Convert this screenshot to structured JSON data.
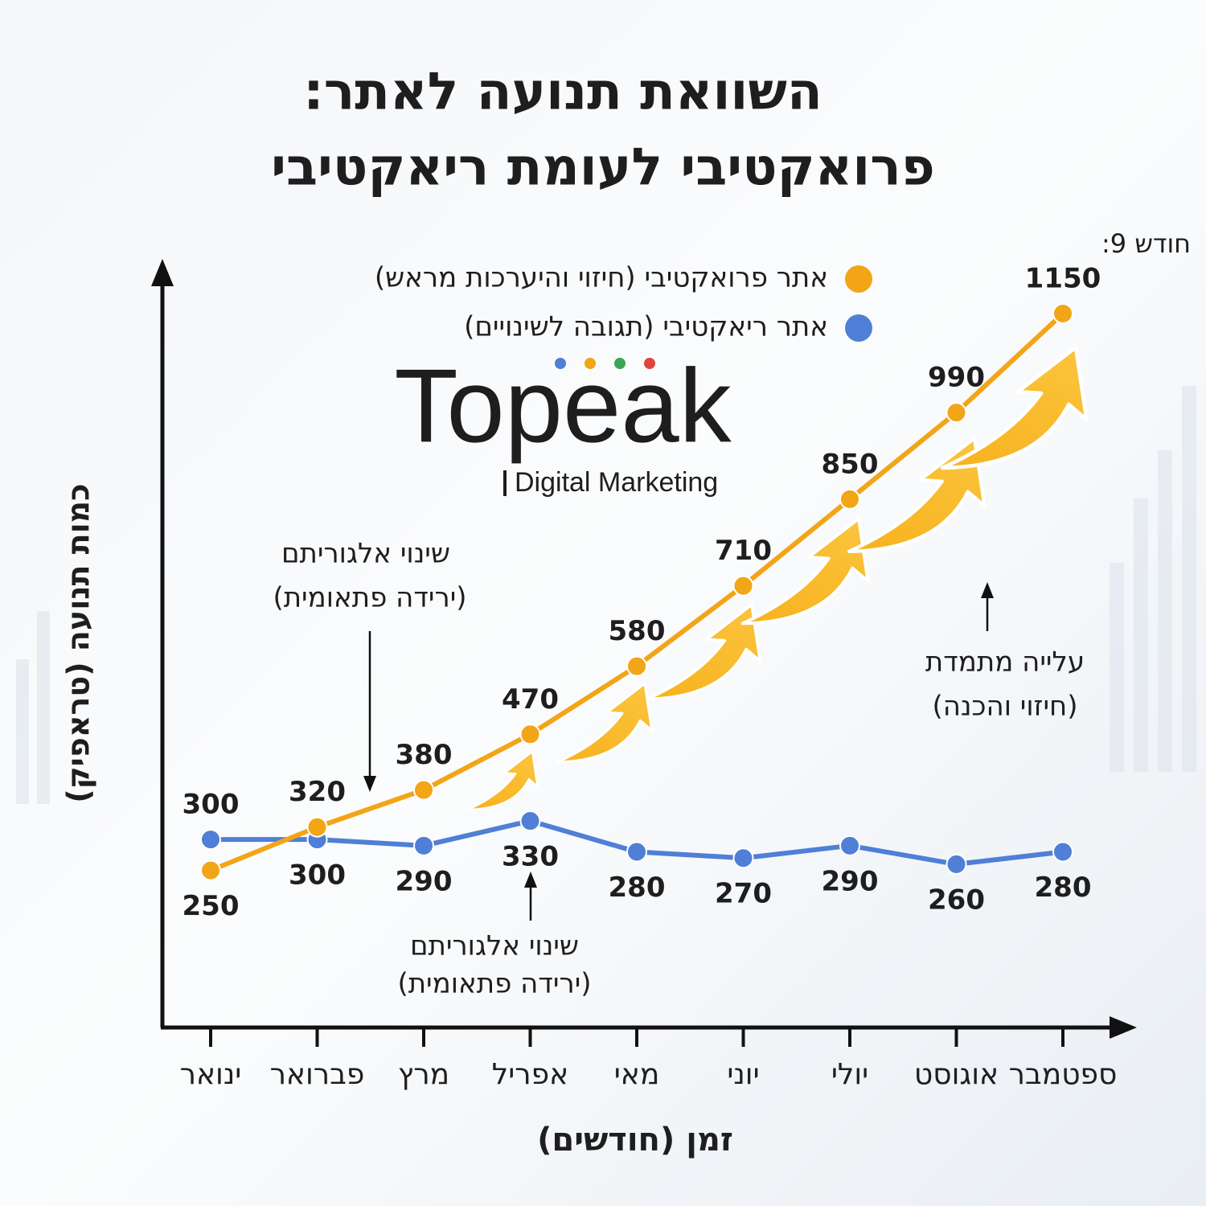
{
  "chart_data": {
    "type": "line",
    "title": [
      "השוואת תנועה לאתר:",
      "פרואקטיבי לעומת ריאקטיבי"
    ],
    "x_label": "זמן (חודשים)",
    "y_label": "כמות תנועה (טראפיק)",
    "categories": [
      "ינואר",
      "פברואר",
      "מרץ",
      "אפריל",
      "מאי",
      "יוני",
      "יולי",
      "אוגוסט",
      "ספטמבר"
    ],
    "series": [
      {
        "name": "אתר פרואקטיבי (חיזוי והיערכות מראש)",
        "color": "#f2a516",
        "values": [
          250,
          320,
          380,
          470,
          580,
          710,
          850,
          990,
          1150
        ]
      },
      {
        "name": "אתר ריאקטיבי (תגובה לשינויים)",
        "color": "#4f7fd6",
        "values": [
          300,
          300,
          290,
          330,
          280,
          270,
          290,
          260,
          280
        ]
      }
    ],
    "peak_note": "חודש 9:",
    "annotations": [
      {
        "text": "שינוי אלגוריתם",
        "sub": "(ירידה פתאומית)"
      },
      {
        "text": "שינוי אלגוריתם",
        "sub": "(ירידה פתאומית)"
      },
      {
        "text": "עלייה מתמדת",
        "sub": "(חיזוי והכנה)"
      }
    ]
  },
  "logo": {
    "name": "Topeak",
    "tagline": "Digital Marketing"
  }
}
